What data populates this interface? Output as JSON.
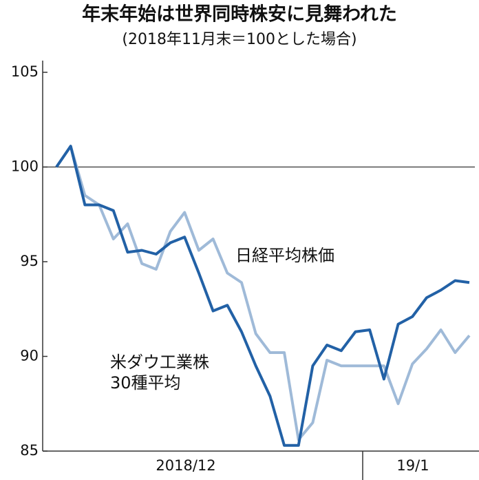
{
  "chart_data": {
    "type": "line",
    "title": "年末年始は世界同時株安に見舞われた",
    "subtitle": "(2018年11月末＝100とした場合)",
    "categories": [
      null,
      null,
      null,
      null,
      null,
      null,
      null,
      null,
      null,
      null,
      null,
      null,
      null,
      null,
      null,
      null,
      null,
      null,
      null,
      null,
      null,
      null,
      null,
      null,
      null,
      null,
      null,
      null,
      null,
      null
    ],
    "x_groups": [
      "2018/12",
      "19/1"
    ],
    "ylim": [
      85,
      105
    ],
    "yticks": [
      85,
      90,
      95,
      100,
      105
    ],
    "reference_line": 100,
    "series": [
      {
        "name": "米ダウ工業株\n30種平均",
        "color": "#2261a6",
        "values": [
          100,
          101.1,
          98,
          98,
          97.7,
          95.5,
          95.6,
          95.4,
          96,
          96.3,
          94.4,
          92.4,
          92.7,
          91.3,
          89.5,
          87.9,
          85.3,
          85.3,
          89.5,
          90.6,
          90.3,
          91.3,
          91.4,
          88.8,
          91.7,
          92.1,
          93.1,
          93.5,
          94,
          93.9
        ]
      },
      {
        "name": "日経平均株価",
        "color": "#9fbad8",
        "values": [
          100,
          101.1,
          98.5,
          98,
          96.2,
          97,
          94.9,
          94.6,
          96.6,
          97.6,
          95.6,
          96.2,
          94.4,
          93.9,
          91.2,
          90.2,
          90.2,
          85.6,
          86.5,
          89.8,
          89.5,
          89.5,
          89.5,
          89.5,
          87.5,
          89.6,
          90.4,
          91.4,
          90.2,
          91.1
        ]
      }
    ]
  }
}
